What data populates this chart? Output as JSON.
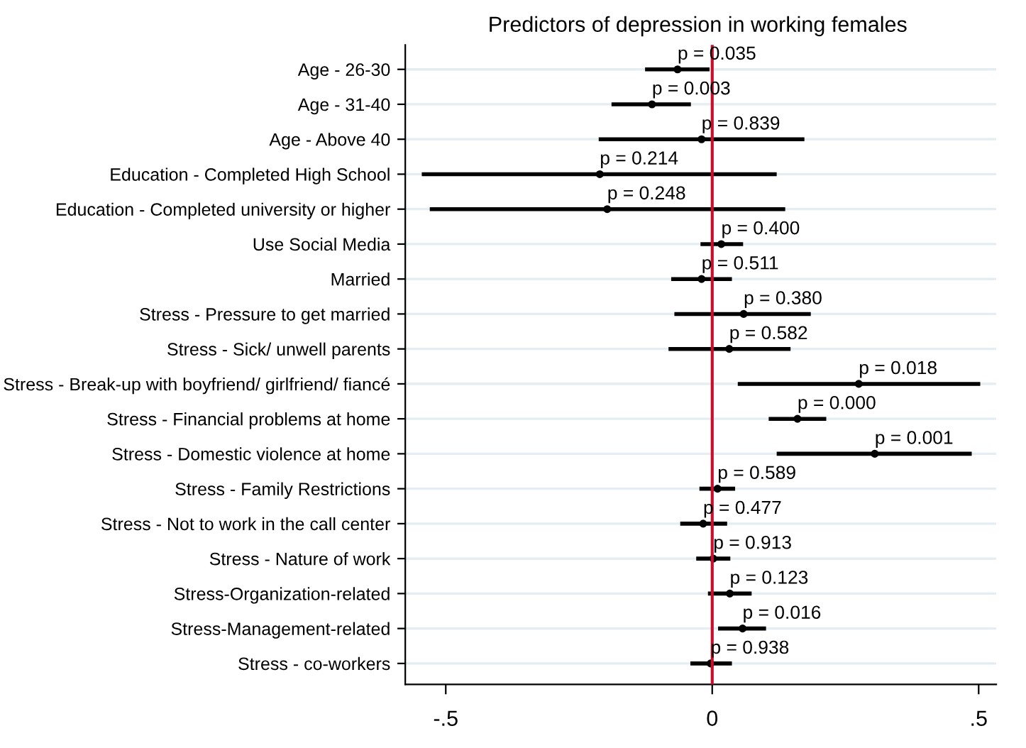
{
  "chart_data": {
    "type": "scatter",
    "orientation": "horizontal",
    "title": "Predictors of depression in working females",
    "categories": [
      "Age - 26-30",
      "Age - 31-40",
      "Age - Above 40",
      "Education - Completed High School",
      "Education - Completed university or higher",
      "Use Social Media",
      "Married",
      "Stress - Pressure to get married",
      "Stress - Sick/ unwell parents",
      "Stress - Break-up with boyfriend/ girlfriend/ fiancé",
      "Stress - Financial problems at home",
      "Stress - Domestic violence at home",
      "Stress - Family Restrictions",
      "Stress - Not to work in the call center",
      "Stress - Nature of work",
      "Stress-Organization-related",
      "Stress-Management-related",
      "Stress - co-workers"
    ],
    "series": [
      {
        "color": "#000000",
        "values": [
          -0.065,
          -0.113,
          -0.02,
          -0.211,
          -0.197,
          0.017,
          -0.02,
          0.059,
          0.032,
          0.275,
          0.16,
          0.305,
          0.01,
          -0.017,
          0.002,
          0.033,
          0.057,
          -0.003
        ],
        "errors": [
          [
            -0.126,
            -0.005
          ],
          [
            -0.189,
            -0.04
          ],
          [
            -0.213,
            0.173
          ],
          [
            -0.545,
            0.121
          ],
          [
            -0.53,
            0.137
          ],
          [
            -0.022,
            0.058
          ],
          [
            -0.077,
            0.037
          ],
          [
            -0.071,
            0.185
          ],
          [
            -0.082,
            0.147
          ],
          [
            0.048,
            0.503
          ],
          [
            0.106,
            0.214
          ],
          [
            0.121,
            0.487
          ],
          [
            -0.024,
            0.043
          ],
          [
            -0.06,
            0.028
          ],
          [
            -0.03,
            0.034
          ],
          [
            -0.008,
            0.074
          ],
          [
            0.011,
            0.101
          ],
          [
            -0.041,
            0.037
          ]
        ]
      }
    ],
    "xlim": [
      -0.576,
      0.533
    ],
    "xticks": [
      {
        "value": -0.5,
        "label": "-.5"
      },
      0,
      {
        "value": 0.5,
        "label": ".5"
      }
    ],
    "grid": "y",
    "marker": "circle",
    "ref_lines": [
      {
        "axis": "x",
        "value": 0,
        "color": "#c8102e"
      }
    ],
    "annotations": [
      {
        "text": "p = 0.035",
        "x": -0.065,
        "y": "Age - 26-30"
      },
      {
        "text": "p = 0.003",
        "x": -0.113,
        "y": "Age - 31-40"
      },
      {
        "text": "p = 0.839",
        "x": -0.02,
        "y": "Age - Above 40"
      },
      {
        "text": "p = 0.214",
        "x": -0.211,
        "y": "Education - Completed High School"
      },
      {
        "text": "p = 0.248",
        "x": -0.197,
        "y": "Education - Completed university or higher"
      },
      {
        "text": "p = 0.400",
        "x": 0.017,
        "y": "Use Social Media"
      },
      {
        "text": "p = 0.511",
        "x": -0.02,
        "y": "Married"
      },
      {
        "text": "p = 0.380",
        "x": 0.059,
        "y": "Stress - Pressure to get married"
      },
      {
        "text": "p = 0.582",
        "x": 0.032,
        "y": "Stress - Sick/ unwell parents"
      },
      {
        "text": "p = 0.018",
        "x": 0.275,
        "y": "Stress - Break-up with boyfriend/ girlfriend/ fiancé"
      },
      {
        "text": "p = 0.000",
        "x": 0.16,
        "y": "Stress - Financial problems at home"
      },
      {
        "text": "p = 0.001",
        "x": 0.305,
        "y": "Stress - Domestic violence at home"
      },
      {
        "text": "p = 0.589",
        "x": 0.01,
        "y": "Stress - Family Restrictions"
      },
      {
        "text": "p = 0.477",
        "x": -0.017,
        "y": "Stress - Not to work in the call center"
      },
      {
        "text": "p = 0.913",
        "x": 0.002,
        "y": "Stress - Nature of work"
      },
      {
        "text": "p = 0.123",
        "x": 0.033,
        "y": "Stress-Organization-related"
      },
      {
        "text": "p = 0.016",
        "x": 0.057,
        "y": "Stress-Management-related"
      },
      {
        "text": "p = 0.938",
        "x": -0.003,
        "y": "Stress - co-workers"
      }
    ]
  }
}
